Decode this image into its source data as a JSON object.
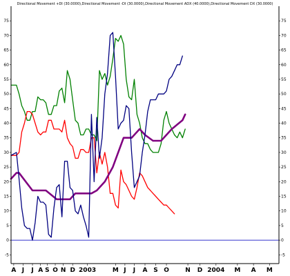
{
  "chart_data": {
    "type": "line",
    "title": "Directional Movement +DI (30.0000),Directional Movement -DI (30.0000),Directional Movement ADX (40.0000),Directional Movement DX (30.0000)",
    "ylim": [
      -8,
      80
    ],
    "yticks": [
      -5,
      0,
      5,
      10,
      15,
      20,
      25,
      30,
      35,
      40,
      45,
      50,
      55,
      60,
      65,
      70,
      75
    ],
    "grid": false,
    "x_range": [
      0,
      100
    ],
    "x_labels": [
      {
        "label": "A",
        "x": 1
      },
      {
        "label": "J",
        "x": 4.5
      },
      {
        "label": "J",
        "x": 8
      },
      {
        "label": "A",
        "x": 11
      },
      {
        "label": "S",
        "x": 13.5
      },
      {
        "label": "O",
        "x": 16.5
      },
      {
        "label": "N",
        "x": 19.5
      },
      {
        "label": "D",
        "x": 23
      },
      {
        "label": "2003",
        "x": 28.5
      },
      {
        "label": "M",
        "x": 39
      },
      {
        "label": "J",
        "x": 42.5
      },
      {
        "label": "J",
        "x": 46
      },
      {
        "label": "A",
        "x": 50
      },
      {
        "label": "S",
        "x": 54
      },
      {
        "label": "O",
        "x": 58
      },
      {
        "label": "N",
        "x": 66
      },
      {
        "label": "D",
        "x": 70.5
      },
      {
        "label": "2004",
        "x": 76.5
      },
      {
        "label": "M",
        "x": 84.5
      },
      {
        "label": "A",
        "x": 90.5
      },
      {
        "label": "M",
        "x": 96.5
      }
    ],
    "reference_line": {
      "y": 0,
      "color": "#3333cc"
    },
    "series": [
      {
        "color": "#008000",
        "points": [
          [
            0,
            53
          ],
          [
            2,
            53
          ],
          [
            3,
            50
          ],
          [
            4,
            46
          ],
          [
            5,
            44
          ],
          [
            6,
            41
          ],
          [
            7,
            41
          ],
          [
            8,
            44
          ],
          [
            9,
            44
          ],
          [
            10,
            49
          ],
          [
            11,
            48
          ],
          [
            12,
            48
          ],
          [
            13,
            47
          ],
          [
            14,
            43
          ],
          [
            15,
            43
          ],
          [
            16,
            46
          ],
          [
            17,
            46
          ],
          [
            18,
            51
          ],
          [
            19,
            52
          ],
          [
            20,
            47
          ],
          [
            21,
            58
          ],
          [
            22,
            55
          ],
          [
            23,
            48
          ],
          [
            24,
            41
          ],
          [
            25,
            40
          ],
          [
            26,
            36
          ],
          [
            27,
            36
          ],
          [
            28,
            38
          ],
          [
            29,
            38
          ],
          [
            30,
            36
          ],
          [
            31,
            36
          ],
          [
            32,
            34
          ],
          [
            33,
            58
          ],
          [
            34,
            55
          ],
          [
            35,
            57
          ],
          [
            36,
            53
          ],
          [
            37,
            56
          ],
          [
            38,
            62
          ],
          [
            39,
            69
          ],
          [
            40,
            68
          ],
          [
            41,
            70
          ],
          [
            42,
            67
          ],
          [
            43,
            55
          ],
          [
            44,
            49
          ],
          [
            45,
            48
          ],
          [
            46,
            55
          ],
          [
            47,
            43
          ],
          [
            48,
            40
          ],
          [
            49,
            35
          ],
          [
            50,
            33
          ],
          [
            51,
            33
          ],
          [
            52,
            31
          ],
          [
            53,
            30
          ],
          [
            54,
            30
          ],
          [
            55,
            30
          ],
          [
            56,
            33
          ],
          [
            57,
            41
          ],
          [
            58,
            44
          ],
          [
            59,
            40
          ],
          [
            60,
            38
          ],
          [
            61,
            36
          ],
          [
            62,
            35
          ],
          [
            63,
            37
          ],
          [
            64,
            35
          ],
          [
            65,
            38
          ]
        ]
      },
      {
        "color": "#ff0000",
        "points": [
          [
            0,
            29
          ],
          [
            2,
            29
          ],
          [
            3,
            30
          ],
          [
            4,
            37
          ],
          [
            5,
            40
          ],
          [
            6,
            44
          ],
          [
            7,
            44
          ],
          [
            8,
            43
          ],
          [
            9,
            40
          ],
          [
            10,
            37
          ],
          [
            11,
            36
          ],
          [
            12,
            37
          ],
          [
            13,
            37
          ],
          [
            14,
            41
          ],
          [
            15,
            41
          ],
          [
            16,
            38
          ],
          [
            17,
            38
          ],
          [
            18,
            38
          ],
          [
            19,
            37
          ],
          [
            20,
            41
          ],
          [
            21,
            35
          ],
          [
            22,
            33
          ],
          [
            23,
            32
          ],
          [
            24,
            28
          ],
          [
            25,
            28
          ],
          [
            26,
            31
          ],
          [
            27,
            31
          ],
          [
            28,
            30
          ],
          [
            29,
            30
          ],
          [
            30,
            35
          ],
          [
            31,
            35
          ],
          [
            32,
            23
          ],
          [
            33,
            30
          ],
          [
            34,
            26
          ],
          [
            35,
            30
          ],
          [
            36,
            25
          ],
          [
            37,
            16
          ],
          [
            38,
            16
          ],
          [
            39,
            12
          ],
          [
            40,
            11
          ],
          [
            41,
            24
          ],
          [
            42,
            20
          ],
          [
            43,
            19
          ],
          [
            44,
            17
          ],
          [
            45,
            15
          ],
          [
            46,
            14
          ],
          [
            47,
            18
          ],
          [
            48,
            23
          ],
          [
            49,
            22
          ],
          [
            50,
            20
          ],
          [
            51,
            18
          ],
          [
            52,
            17
          ],
          [
            53,
            16
          ],
          [
            54,
            15
          ],
          [
            55,
            14
          ],
          [
            56,
            13
          ],
          [
            57,
            12
          ],
          [
            58,
            12
          ],
          [
            59,
            11
          ],
          [
            60,
            10
          ],
          [
            61,
            9
          ]
        ]
      },
      {
        "color": "#800080",
        "points": [
          [
            0,
            21
          ],
          [
            2,
            23
          ],
          [
            3,
            23
          ],
          [
            8,
            17
          ],
          [
            13,
            17
          ],
          [
            17,
            14
          ],
          [
            22,
            14
          ],
          [
            24,
            16
          ],
          [
            30,
            16
          ],
          [
            32,
            17
          ],
          [
            35,
            20
          ],
          [
            38,
            25
          ],
          [
            42,
            35
          ],
          [
            45,
            35
          ],
          [
            48,
            38
          ],
          [
            50,
            36
          ],
          [
            53,
            34
          ],
          [
            56,
            34
          ],
          [
            60,
            38
          ],
          [
            64,
            41
          ],
          [
            65,
            43
          ]
        ]
      },
      {
        "color": "#000080",
        "points": [
          [
            0,
            29
          ],
          [
            2,
            30
          ],
          [
            3,
            21
          ],
          [
            4,
            11
          ],
          [
            5,
            5
          ],
          [
            6,
            4
          ],
          [
            7,
            4
          ],
          [
            8,
            0
          ],
          [
            9,
            6
          ],
          [
            10,
            15
          ],
          [
            11,
            13
          ],
          [
            12,
            13
          ],
          [
            13,
            12
          ],
          [
            14,
            2
          ],
          [
            15,
            1
          ],
          [
            16,
            11
          ],
          [
            17,
            18
          ],
          [
            18,
            19
          ],
          [
            19,
            8
          ],
          [
            20,
            27
          ],
          [
            21,
            27
          ],
          [
            22,
            18
          ],
          [
            23,
            17
          ],
          [
            24,
            10
          ],
          [
            25,
            9
          ],
          [
            26,
            12
          ],
          [
            27,
            8
          ],
          [
            28,
            5
          ],
          [
            29,
            1
          ],
          [
            30,
            43
          ],
          [
            31,
            20
          ],
          [
            32,
            42
          ],
          [
            33,
            28
          ],
          [
            34,
            35
          ],
          [
            35,
            50
          ],
          [
            36,
            57
          ],
          [
            37,
            70
          ],
          [
            38,
            71
          ],
          [
            39,
            56
          ],
          [
            40,
            38
          ],
          [
            41,
            40
          ],
          [
            42,
            41
          ],
          [
            43,
            46
          ],
          [
            44,
            45
          ],
          [
            45,
            30
          ],
          [
            46,
            18
          ],
          [
            47,
            20
          ],
          [
            48,
            22
          ],
          [
            49,
            30
          ],
          [
            50,
            36
          ],
          [
            51,
            44
          ],
          [
            52,
            48
          ],
          [
            53,
            48
          ],
          [
            54,
            48
          ],
          [
            55,
            50
          ],
          [
            56,
            50
          ],
          [
            57,
            50
          ],
          [
            58,
            51
          ],
          [
            59,
            55
          ],
          [
            60,
            56
          ],
          [
            61,
            58
          ],
          [
            62,
            60
          ],
          [
            63,
            60
          ],
          [
            64,
            63
          ]
        ]
      }
    ]
  }
}
